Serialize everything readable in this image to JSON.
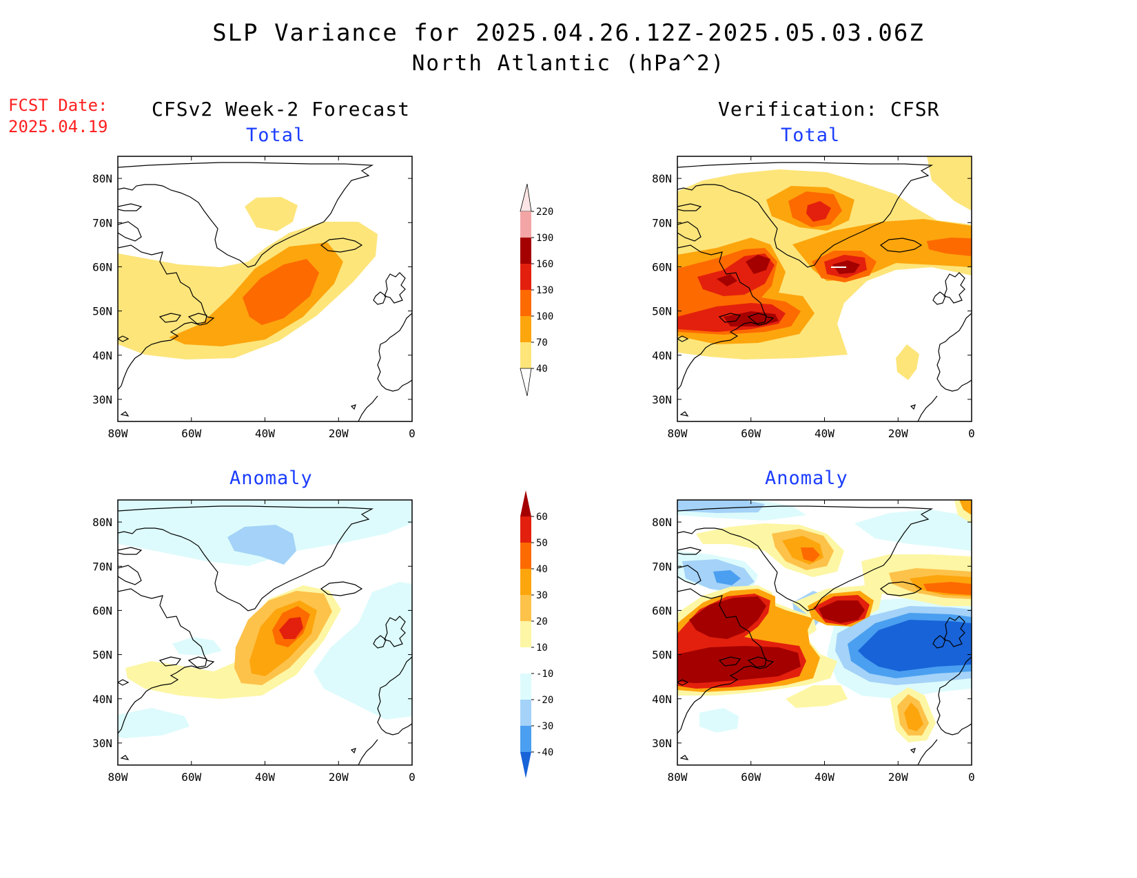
{
  "title_line1": "SLP Variance for 2025.04.26.12Z-2025.05.03.06Z",
  "title_line2": "North Atlantic (hPa^2)",
  "fcst_date_label": "FCST Date:",
  "fcst_date_value": "2025.04.19",
  "columns": {
    "left": "CFSv2 Week-2 Forecast",
    "right": "Verification: CFSR"
  },
  "panel_subtitles": {
    "total": "Total",
    "anomaly": "Anomaly"
  },
  "axes": {
    "lat_ticks": [
      "80N",
      "70N",
      "60N",
      "50N",
      "40N",
      "30N"
    ],
    "lon_ticks": [
      "80W",
      "60W",
      "40W",
      "20W",
      "0"
    ]
  },
  "colorbars": {
    "total": {
      "levels": [
        "40",
        "70",
        "100",
        "130",
        "160",
        "190",
        "220"
      ],
      "colors": [
        "#fde57a",
        "#fda50d",
        "#fd6a00",
        "#e3200d",
        "#a40000",
        "#f3a4a4",
        "#fde5e5"
      ]
    },
    "anomaly": {
      "levels": [
        "60",
        "50",
        "40",
        "30",
        "20",
        "10",
        "-10",
        "-20",
        "-30",
        "-40"
      ],
      "colors": [
        "#a40000",
        "#e3200d",
        "#fd6a00",
        "#fda50d",
        "#fdc24a",
        "#fdf6a4",
        "#ffffff",
        "#ddfbfc",
        "#a4d2f8",
        "#4a9ff0",
        "#1863d8"
      ]
    }
  }
}
